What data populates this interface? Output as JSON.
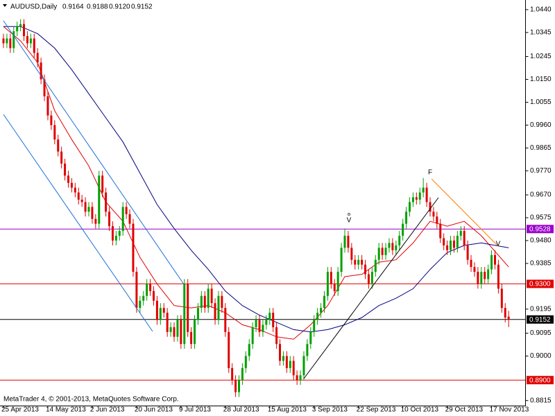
{
  "chart_data": {
    "type": "candlestick",
    "title": "AUDUSD,Daily",
    "last_candle_labels": [
      "0.9164",
      "0.9188",
      "0.9120",
      "0.9152"
    ],
    "footer": "MetaTrader 4, © 2001-2013, MetaQuotes Software Corp.",
    "up_color": "#00a000",
    "down_color": "#e00000",
    "ylim": [
      0.8794,
      1.048
    ],
    "yticks": [
      {
        "value": 1.044,
        "label": "1.0440"
      },
      1.0345,
      1.0245,
      {
        "value": 1.015,
        "label": "1.0150"
      },
      1.0055,
      {
        "value": 0.996,
        "label": "0.9960"
      },
      0.9865,
      {
        "value": 0.977,
        "label": "0.9770"
      },
      {
        "value": 0.967,
        "label": "0.9670"
      },
      0.9575,
      {
        "value": 0.948,
        "label": "0.9480"
      },
      0.9385,
      0.9195,
      0.9095,
      {
        "value": 0.9,
        "label": "0.9000"
      },
      0.8815
    ],
    "x_labels": [
      "25 Apr 2013",
      "14 May 2013",
      "2 Jun 2013",
      "20 Jun 2013",
      "9 Jul 2013",
      "28 Jul 2013",
      "15 Aug 2013",
      "3 Sep 2013",
      "22 Sep 2013",
      "10 Oct 2013",
      "29 Oct 2013",
      "17 Nov 2013"
    ],
    "price_lines": [
      {
        "value": 0.9528,
        "color": "#9900cc"
      },
      {
        "value": 0.93,
        "label": "0.9300",
        "color": "#e00000"
      },
      {
        "value": 0.9152,
        "color": "#000000"
      },
      {
        "value": 0.89,
        "label": "0.8900",
        "color": "#e00000"
      }
    ],
    "annotations": [
      "F",
      "V",
      "V"
    ],
    "candles": [
      [
        1.032,
        1.034,
        1.028,
        1.03
      ],
      [
        1.03,
        1.034,
        1.028,
        1.032
      ],
      [
        1.032,
        1.034,
        1.026,
        1.028
      ],
      [
        1.028,
        1.037,
        1.026,
        1.035
      ],
      [
        1.035,
        1.039,
        1.033,
        1.037
      ],
      [
        1.037,
        1.04,
        1.035,
        1.038
      ],
      [
        1.038,
        1.04,
        1.031,
        1.033
      ],
      [
        1.033,
        1.035,
        1.028,
        1.03
      ],
      [
        1.03,
        1.034,
        1.028,
        1.032
      ],
      [
        1.032,
        1.034,
        1.024,
        1.026
      ],
      [
        1.026,
        1.028,
        1.02,
        1.022
      ],
      [
        1.022,
        1.024,
        1.013,
        1.015
      ],
      [
        1.015,
        1.017,
        1.006,
        1.008
      ],
      [
        1.008,
        1.01,
        0.998,
        1
      ],
      [
        1,
        1.002,
        0.994,
        0.996
      ],
      [
        0.996,
        0.998,
        0.988,
        0.99
      ],
      [
        0.99,
        0.992,
        0.983,
        0.985
      ],
      [
        0.985,
        0.987,
        0.978,
        0.98
      ],
      [
        0.98,
        0.982,
        0.973,
        0.975
      ],
      [
        0.975,
        0.977,
        0.97,
        0.972
      ],
      [
        0.972,
        0.974,
        0.968,
        0.97
      ],
      [
        0.97,
        0.972,
        0.966,
        0.968
      ],
      [
        0.968,
        0.97,
        0.963,
        0.965
      ],
      [
        0.965,
        0.967,
        0.962,
        0.964
      ],
      [
        0.964,
        0.966,
        0.958,
        0.96
      ],
      [
        0.96,
        0.964,
        0.958,
        0.962
      ],
      [
        0.962,
        0.964,
        0.955,
        0.957
      ],
      [
        0.957,
        0.959,
        0.953,
        0.955
      ],
      [
        0.955,
        0.977,
        0.953,
        0.975
      ],
      [
        0.975,
        0.977,
        0.966,
        0.968
      ],
      [
        0.968,
        0.97,
        0.958,
        0.96
      ],
      [
        0.96,
        0.962,
        0.952,
        0.954
      ],
      [
        0.954,
        0.956,
        0.946,
        0.948
      ],
      [
        0.948,
        0.952,
        0.946,
        0.95
      ],
      [
        0.95,
        0.954,
        0.948,
        0.952
      ],
      [
        0.952,
        0.964,
        0.95,
        0.962
      ],
      [
        0.962,
        0.964,
        0.957,
        0.959
      ],
      [
        0.959,
        0.961,
        0.953,
        0.955
      ],
      [
        0.955,
        0.957,
        0.933,
        0.935
      ],
      [
        0.935,
        0.937,
        0.918,
        0.92
      ],
      [
        0.92,
        0.925,
        0.918,
        0.923
      ],
      [
        0.923,
        0.927,
        0.921,
        0.925
      ],
      [
        0.925,
        0.932,
        0.923,
        0.93
      ],
      [
        0.93,
        0.932,
        0.925,
        0.927
      ],
      [
        0.927,
        0.929,
        0.921,
        0.923
      ],
      [
        0.923,
        0.925,
        0.913,
        0.915
      ],
      [
        0.915,
        0.922,
        0.913,
        0.92
      ],
      [
        0.92,
        0.922,
        0.916,
        0.918
      ],
      [
        0.918,
        0.92,
        0.908,
        0.91
      ],
      [
        0.91,
        0.914,
        0.908,
        0.912
      ],
      [
        0.912,
        0.914,
        0.906,
        0.908
      ],
      [
        0.908,
        0.917,
        0.906,
        0.915
      ],
      [
        0.915,
        0.917,
        0.903,
        0.905
      ],
      [
        0.905,
        0.932,
        0.903,
        0.93
      ],
      [
        0.93,
        0.932,
        0.908,
        0.91
      ],
      [
        0.91,
        0.912,
        0.903,
        0.905
      ],
      [
        0.905,
        0.917,
        0.903,
        0.915
      ],
      [
        0.915,
        0.922,
        0.913,
        0.92
      ],
      [
        0.92,
        0.927,
        0.918,
        0.925
      ],
      [
        0.925,
        0.927,
        0.918,
        0.92
      ],
      [
        0.92,
        0.93,
        0.918,
        0.928
      ],
      [
        0.928,
        0.93,
        0.92,
        0.922
      ],
      [
        0.922,
        0.924,
        0.913,
        0.915
      ],
      [
        0.915,
        0.927,
        0.913,
        0.925
      ],
      [
        0.925,
        0.927,
        0.918,
        0.92
      ],
      [
        0.92,
        0.922,
        0.908,
        0.91
      ],
      [
        0.91,
        0.912,
        0.893,
        0.895
      ],
      [
        0.895,
        0.897,
        0.888,
        0.89
      ],
      [
        0.89,
        0.892,
        0.883,
        0.885
      ],
      [
        0.885,
        0.892,
        0.883,
        0.89
      ],
      [
        0.89,
        0.897,
        0.888,
        0.895
      ],
      [
        0.895,
        0.902,
        0.893,
        0.9
      ],
      [
        0.9,
        0.907,
        0.898,
        0.905
      ],
      [
        0.905,
        0.914,
        0.903,
        0.912
      ],
      [
        0.912,
        0.917,
        0.91,
        0.915
      ],
      [
        0.915,
        0.917,
        0.908,
        0.91
      ],
      [
        0.91,
        0.915,
        0.908,
        0.913
      ],
      [
        0.913,
        0.917,
        0.911,
        0.915
      ],
      [
        0.915,
        0.92,
        0.913,
        0.918
      ],
      [
        0.918,
        0.92,
        0.91,
        0.912
      ],
      [
        0.912,
        0.914,
        0.903,
        0.905
      ],
      [
        0.905,
        0.907,
        0.896,
        0.898
      ],
      [
        0.898,
        0.902,
        0.896,
        0.9
      ],
      [
        0.9,
        0.902,
        0.893,
        0.895
      ],
      [
        0.895,
        0.9,
        0.893,
        0.898
      ],
      [
        0.898,
        0.9,
        0.89,
        0.892
      ],
      [
        0.892,
        0.894,
        0.888,
        0.89
      ],
      [
        0.89,
        0.894,
        0.888,
        0.892
      ],
      [
        0.892,
        0.902,
        0.89,
        0.9
      ],
      [
        0.9,
        0.907,
        0.898,
        0.905
      ],
      [
        0.905,
        0.912,
        0.903,
        0.91
      ],
      [
        0.91,
        0.917,
        0.908,
        0.915
      ],
      [
        0.915,
        0.92,
        0.913,
        0.918
      ],
      [
        0.918,
        0.922,
        0.916,
        0.92
      ],
      [
        0.92,
        0.927,
        0.918,
        0.925
      ],
      [
        0.925,
        0.937,
        0.923,
        0.935
      ],
      [
        0.935,
        0.937,
        0.928,
        0.93
      ],
      [
        0.93,
        0.932,
        0.925,
        0.927
      ],
      [
        0.927,
        0.937,
        0.925,
        0.935
      ],
      [
        0.935,
        0.947,
        0.933,
        0.945
      ],
      [
        0.945,
        0.953,
        0.943,
        0.95
      ],
      [
        0.95,
        0.952,
        0.943,
        0.945
      ],
      [
        0.945,
        0.947,
        0.938,
        0.94
      ],
      [
        0.94,
        0.942,
        0.936,
        0.938
      ],
      [
        0.938,
        0.942,
        0.936,
        0.94
      ],
      [
        0.94,
        0.942,
        0.936,
        0.938
      ],
      [
        0.938,
        0.94,
        0.932,
        0.934
      ],
      [
        0.934,
        0.936,
        0.928,
        0.93
      ],
      [
        0.93,
        0.937,
        0.928,
        0.935
      ],
      [
        0.935,
        0.942,
        0.933,
        0.94
      ],
      [
        0.94,
        0.947,
        0.938,
        0.945
      ],
      [
        0.945,
        0.947,
        0.94,
        0.942
      ],
      [
        0.942,
        0.947,
        0.94,
        0.945
      ],
      [
        0.945,
        0.949,
        0.943,
        0.947
      ],
      [
        0.947,
        0.949,
        0.942,
        0.944
      ],
      [
        0.944,
        0.948,
        0.942,
        0.946
      ],
      [
        0.946,
        0.952,
        0.944,
        0.95
      ],
      [
        0.95,
        0.957,
        0.948,
        0.955
      ],
      [
        0.955,
        0.962,
        0.953,
        0.96
      ],
      [
        0.96,
        0.966,
        0.958,
        0.964
      ],
      [
        0.964,
        0.968,
        0.962,
        0.966
      ],
      [
        0.966,
        0.968,
        0.963,
        0.965
      ],
      [
        0.965,
        0.97,
        0.963,
        0.968
      ],
      [
        0.968,
        0.974,
        0.966,
        0.97
      ],
      [
        0.97,
        0.972,
        0.962,
        0.964
      ],
      [
        0.964,
        0.966,
        0.958,
        0.96
      ],
      [
        0.96,
        0.962,
        0.956,
        0.958
      ],
      [
        0.958,
        0.96,
        0.953,
        0.955
      ],
      [
        0.955,
        0.957,
        0.947,
        0.949
      ],
      [
        0.949,
        0.951,
        0.944,
        0.946
      ],
      [
        0.946,
        0.948,
        0.942,
        0.944
      ],
      [
        0.944,
        0.95,
        0.942,
        0.948
      ],
      [
        0.948,
        0.95,
        0.943,
        0.945
      ],
      [
        0.945,
        0.952,
        0.943,
        0.95
      ],
      [
        0.95,
        0.954,
        0.948,
        0.952
      ],
      [
        0.952,
        0.954,
        0.944,
        0.946
      ],
      [
        0.946,
        0.948,
        0.938,
        0.94
      ],
      [
        0.94,
        0.942,
        0.935,
        0.937
      ],
      [
        0.937,
        0.939,
        0.933,
        0.935
      ],
      [
        0.935,
        0.937,
        0.928,
        0.93
      ],
      [
        0.93,
        0.937,
        0.928,
        0.935
      ],
      [
        0.935,
        0.937,
        0.93,
        0.932
      ],
      [
        0.932,
        0.938,
        0.93,
        0.936
      ],
      [
        0.936,
        0.944,
        0.934,
        0.942
      ],
      [
        0.942,
        0.944,
        0.936,
        0.938
      ],
      [
        0.938,
        0.94,
        0.926,
        0.928
      ],
      [
        0.928,
        0.93,
        0.918,
        0.92
      ],
      [
        0.92,
        0.922,
        0.914,
        0.916
      ],
      [
        0.9164,
        0.9188,
        0.912,
        0.9152
      ]
    ],
    "series": [
      {
        "color": "#e00000",
        "x": [
          0,
          5,
          10,
          15,
          20,
          25,
          30,
          35,
          40,
          45,
          50,
          55,
          60,
          65,
          70,
          75,
          80,
          85,
          90,
          95,
          100,
          105,
          110,
          115,
          120,
          125,
          130,
          135,
          140,
          148
        ],
        "values": [
          1.037,
          1.031,
          1.022,
          1.002,
          0.99,
          0.979,
          0.964,
          0.956,
          0.941,
          0.93,
          0.921,
          0.92,
          0.921,
          0.918,
          0.913,
          0.911,
          0.908,
          0.907,
          0.913,
          0.921,
          0.933,
          0.934,
          0.939,
          0.94,
          0.947,
          0.956,
          0.954,
          0.956,
          0.95,
          0.937
        ]
      },
      {
        "color": "#000080",
        "x": [
          0,
          5,
          10,
          15,
          20,
          25,
          30,
          35,
          40,
          45,
          50,
          55,
          60,
          65,
          70,
          75,
          80,
          85,
          90,
          95,
          100,
          105,
          110,
          115,
          120,
          125,
          130,
          135,
          140,
          148
        ],
        "values": [
          1.037,
          1.037,
          1.034,
          1.028,
          1.019,
          1.009,
          0.999,
          0.989,
          0.976,
          0.963,
          0.953,
          0.944,
          0.936,
          0.927,
          0.921,
          0.917,
          0.914,
          0.911,
          0.91,
          0.911,
          0.913,
          0.916,
          0.921,
          0.924,
          0.928,
          0.936,
          0.943,
          0.946,
          0.947,
          0.945
        ]
      }
    ]
  }
}
